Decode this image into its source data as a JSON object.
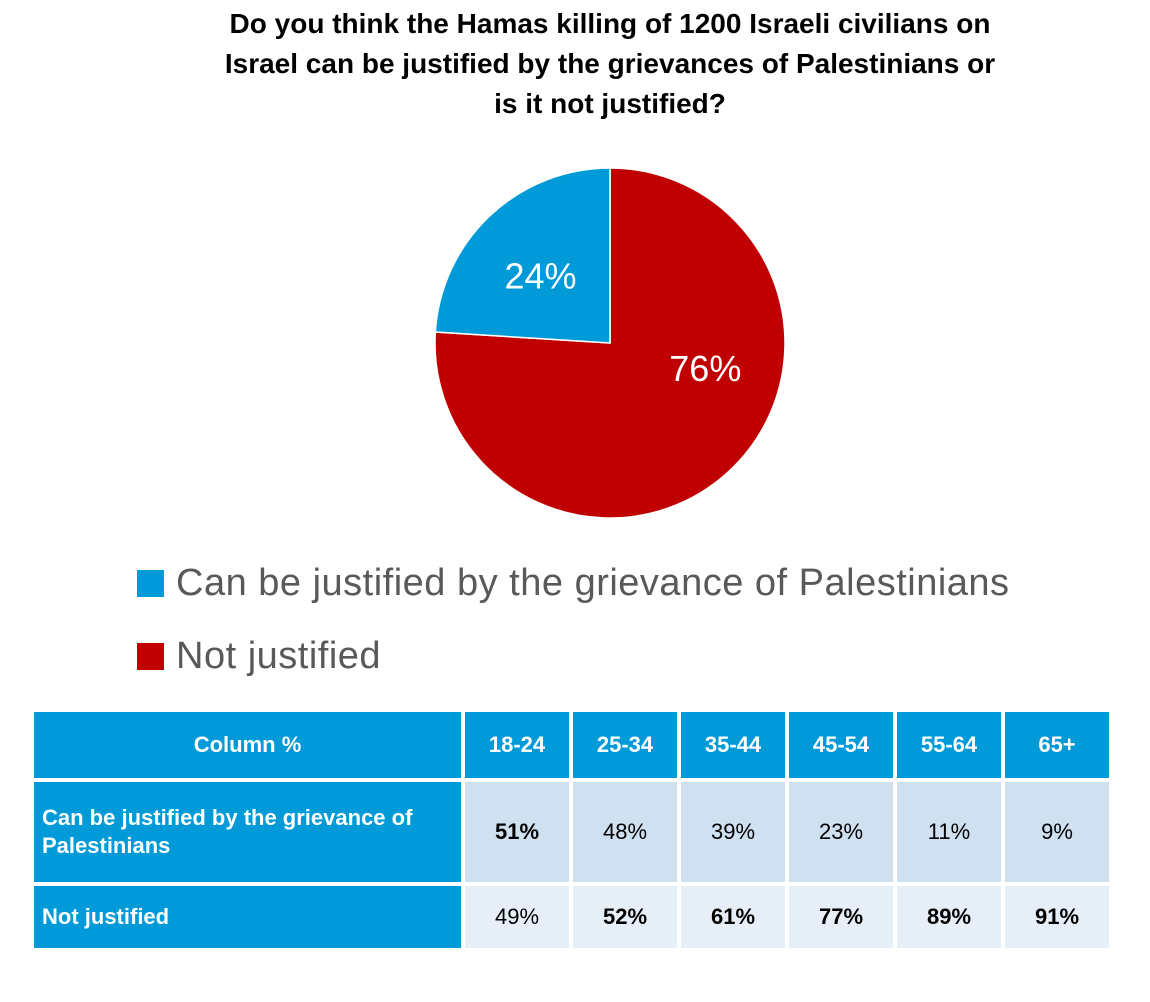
{
  "chart_data": {
    "type": "pie",
    "title_lines": [
      "Do you think the Hamas killing of 1200 Israeli civilians on",
      "Israel can be justified by the grievances of Palestinians or",
      "is it not justified?"
    ],
    "slices": [
      {
        "label": "Can be justified by the grievance of Palestinians",
        "value": 24,
        "value_label": "24%",
        "color": "#009ad8"
      },
      {
        "label": "Not justified",
        "value": 76,
        "value_label": "76%",
        "color": "#c00000"
      }
    ],
    "legend_position": "bottom"
  },
  "table": {
    "header_label": "Column %",
    "columns": [
      "18-24",
      "25-34",
      "35-44",
      "45-54",
      "55-64",
      "65+"
    ],
    "rows": [
      {
        "label": "Can be justified by the grievance of Palestinians",
        "values": [
          "51%",
          "48%",
          "39%",
          "23%",
          "11%",
          "9%"
        ],
        "bold": [
          true,
          false,
          false,
          false,
          false,
          false
        ]
      },
      {
        "label": "Not justified",
        "values": [
          "49%",
          "52%",
          "61%",
          "77%",
          "89%",
          "91%"
        ],
        "bold": [
          false,
          true,
          true,
          true,
          true,
          true
        ]
      }
    ]
  },
  "colors": {
    "accent": "#009ad8",
    "not_justified": "#c00000",
    "row_light_1": "#cfe0f1",
    "row_light_2": "#e6eef8"
  }
}
